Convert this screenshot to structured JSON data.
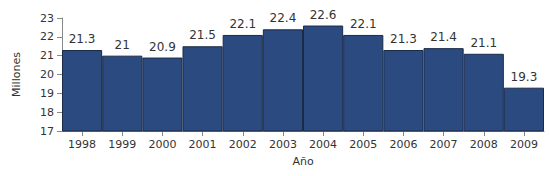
{
  "chart_data": {
    "type": "bar",
    "xlabel": "Año",
    "ylabel": "Millones",
    "categories": [
      "1998",
      "1999",
      "2000",
      "2001",
      "2002",
      "2003",
      "2004",
      "2005",
      "2006",
      "2007",
      "2008",
      "2009"
    ],
    "values": [
      21.3,
      21,
      20.9,
      21.5,
      22.1,
      22.4,
      22.6,
      22.1,
      21.3,
      21.4,
      21.1,
      19.3
    ],
    "color": "#2b4a80",
    "ylim": [
      17,
      23
    ],
    "yticks": [
      17,
      18,
      19,
      20,
      21,
      22,
      23
    ],
    "grid": false,
    "data_labels": true
  }
}
